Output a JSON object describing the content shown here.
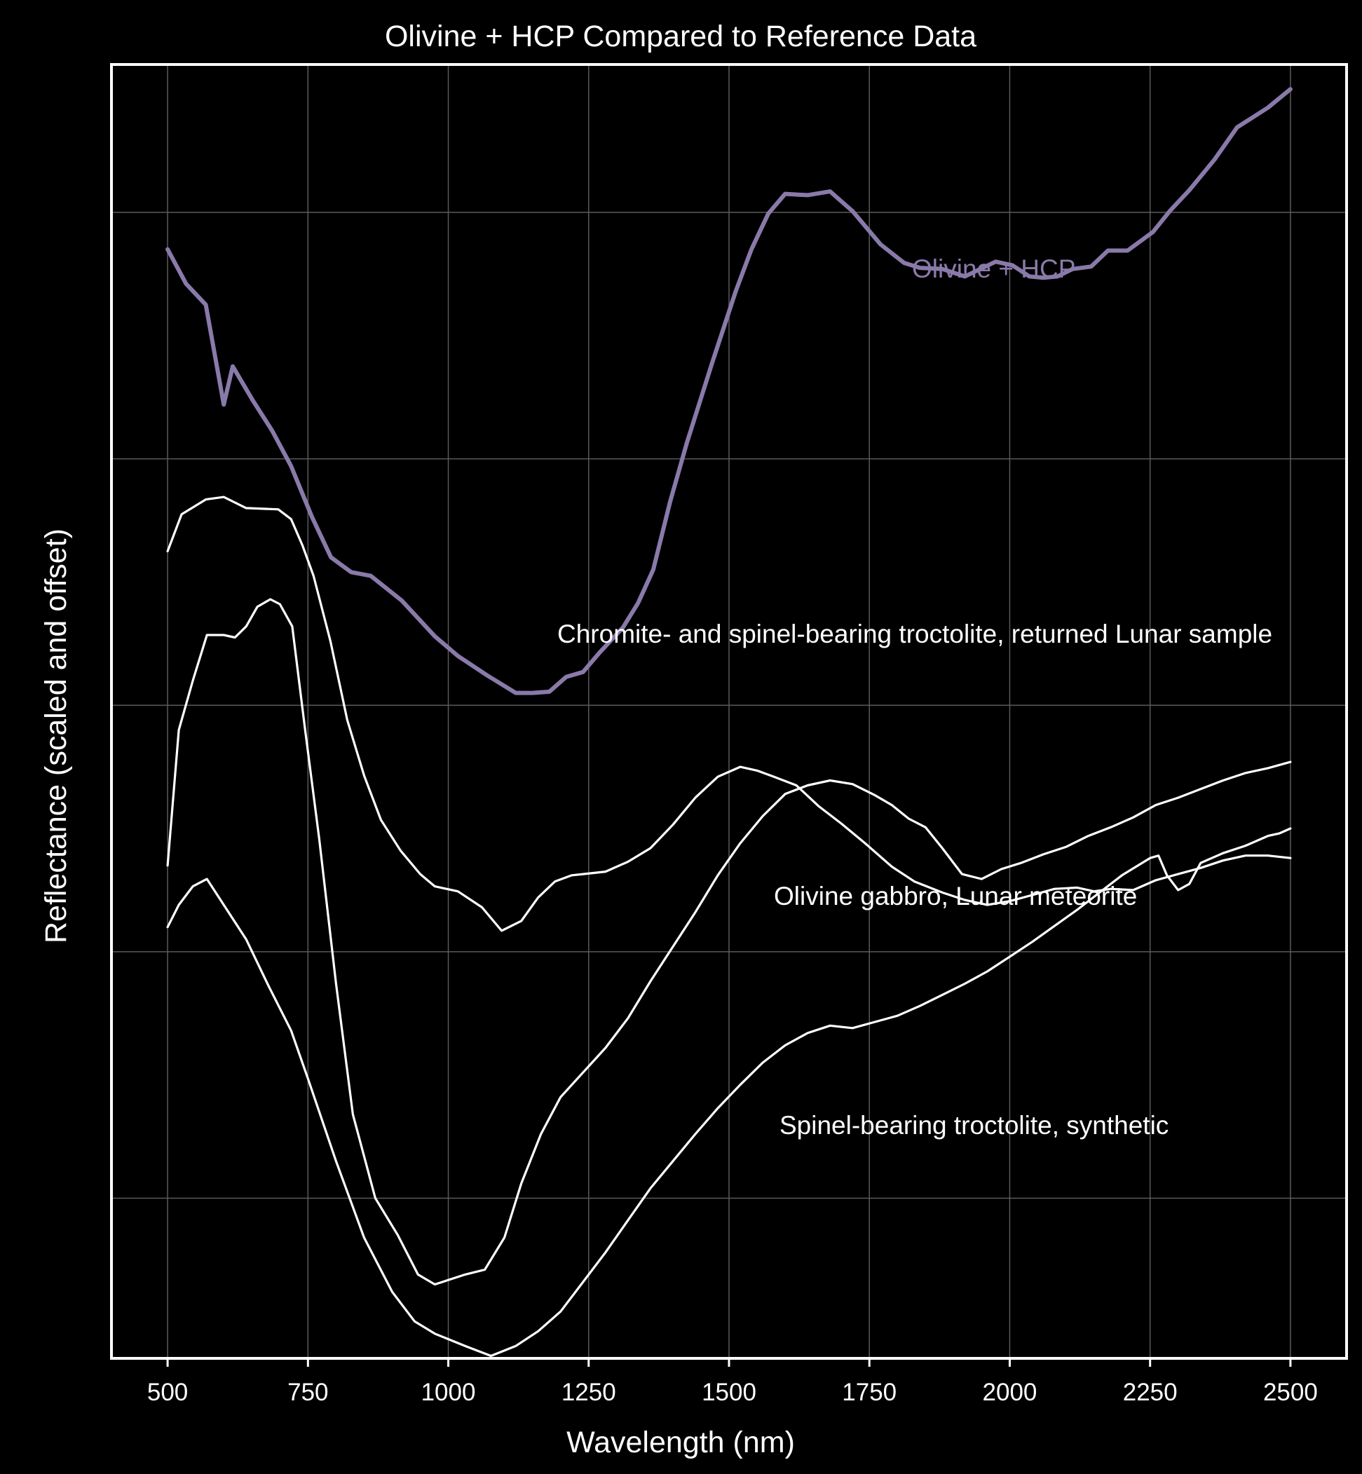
{
  "chart_data": {
    "type": "line",
    "title": "Olivine + HCP Compared to Reference Data",
    "xlabel": "Wavelength (nm)",
    "ylabel": "Reflectance (scaled and offset)",
    "xlim": [
      400,
      2600
    ],
    "ylim": [
      0,
      10.5
    ],
    "x_ticks": [
      500,
      750,
      1000,
      1250,
      1500,
      1750,
      2000,
      2250,
      2500
    ],
    "x_tick_labels": [
      "500",
      "750",
      "1000",
      "1250",
      "1500",
      "1750",
      "2000",
      "2250",
      "2500"
    ],
    "y_gridlines": [
      1.3,
      3.3,
      5.3,
      7.3,
      9.3
    ],
    "y_tick_labels": "none",
    "grid": true,
    "legend": "none",
    "series": [
      {
        "name": "Olivine + HCP",
        "color": "#8a7aaa",
        "stroke": "thick",
        "x": [
          500,
          533,
          568,
          600,
          616,
          651,
          686,
          720,
          757,
          791,
          827,
          862,
          917,
          976,
          1017,
          1070,
          1120,
          1150,
          1180,
          1210,
          1240,
          1270,
          1311,
          1338,
          1365,
          1395,
          1425,
          1470,
          1512,
          1540,
          1570,
          1600,
          1640,
          1680,
          1720,
          1770,
          1812,
          1840,
          1880,
          1920,
          1975,
          2005,
          2035,
          2060,
          2085,
          2112,
          2145,
          2175,
          2210,
          2255,
          2285,
          2320,
          2365,
          2405,
          2460,
          2500
        ],
        "y": [
          9.0,
          8.72,
          8.55,
          7.74,
          8.05,
          7.78,
          7.53,
          7.24,
          6.83,
          6.5,
          6.38,
          6.35,
          6.15,
          5.86,
          5.7,
          5.54,
          5.4,
          5.4,
          5.41,
          5.53,
          5.57,
          5.73,
          5.93,
          6.13,
          6.4,
          6.95,
          7.43,
          8.08,
          8.66,
          9.0,
          9.29,
          9.45,
          9.44,
          9.47,
          9.31,
          9.04,
          8.89,
          8.85,
          8.84,
          8.78,
          8.9,
          8.87,
          8.78,
          8.77,
          8.78,
          8.84,
          8.86,
          8.99,
          8.99,
          9.14,
          9.31,
          9.48,
          9.73,
          9.99,
          10.15,
          10.3
        ]
      },
      {
        "name": "Chromite- and spinel-bearing troctolite, returned Lunar sample",
        "color": "#ffffff",
        "stroke": "thin",
        "x": [
          500,
          525,
          568,
          600,
          640,
          697,
          720,
          740,
          760,
          790,
          820,
          850,
          880,
          915,
          950,
          976,
          1017,
          1060,
          1095,
          1130,
          1160,
          1190,
          1220,
          1240,
          1280,
          1320,
          1360,
          1400,
          1440,
          1480,
          1520,
          1550,
          1580,
          1620,
          1660,
          1700,
          1745,
          1790,
          1830,
          1880,
          1920,
          1960,
          2000,
          2040,
          2080,
          2120,
          2150,
          2180,
          2220,
          2260,
          2300,
          2340,
          2380,
          2420,
          2460,
          2500
        ],
        "y": [
          6.55,
          6.85,
          6.97,
          6.99,
          6.9,
          6.89,
          6.81,
          6.6,
          6.35,
          5.82,
          5.18,
          4.73,
          4.37,
          4.12,
          3.93,
          3.83,
          3.79,
          3.66,
          3.47,
          3.55,
          3.74,
          3.87,
          3.92,
          3.93,
          3.95,
          4.03,
          4.14,
          4.33,
          4.55,
          4.72,
          4.8,
          4.77,
          4.72,
          4.65,
          4.48,
          4.34,
          4.17,
          3.99,
          3.87,
          3.78,
          3.72,
          3.68,
          3.71,
          3.76,
          3.81,
          3.82,
          3.79,
          3.81,
          3.8,
          3.88,
          3.93,
          3.98,
          4.04,
          4.08,
          4.08,
          4.06
        ]
      },
      {
        "name": "Olivine gabbro, Lunar meteorite",
        "color": "#ffffff",
        "stroke": "thin",
        "x": [
          500,
          520,
          545,
          570,
          600,
          620,
          640,
          660,
          683,
          700,
          722,
          745,
          770,
          800,
          830,
          870,
          910,
          946,
          976,
          1030,
          1065,
          1100,
          1130,
          1165,
          1200,
          1240,
          1280,
          1320,
          1360,
          1400,
          1440,
          1480,
          1520,
          1560,
          1600,
          1640,
          1680,
          1720,
          1760,
          1790,
          1820,
          1850,
          1880,
          1915,
          1950,
          1985,
          2020,
          2060,
          2100,
          2140,
          2180,
          2220,
          2260,
          2300,
          2340,
          2380,
          2420,
          2460,
          2500
        ],
        "y": [
          4.0,
          5.1,
          5.5,
          5.87,
          5.87,
          5.85,
          5.94,
          6.1,
          6.16,
          6.12,
          5.94,
          5.1,
          4.22,
          3.04,
          1.98,
          1.3,
          1.0,
          0.68,
          0.6,
          0.68,
          0.72,
          0.98,
          1.42,
          1.82,
          2.12,
          2.32,
          2.52,
          2.76,
          3.06,
          3.34,
          3.62,
          3.92,
          4.18,
          4.4,
          4.58,
          4.65,
          4.69,
          4.66,
          4.57,
          4.49,
          4.38,
          4.31,
          4.14,
          3.93,
          3.89,
          3.97,
          4.02,
          4.09,
          4.15,
          4.24,
          4.31,
          4.39,
          4.49,
          4.55,
          4.62,
          4.69,
          4.75,
          4.79,
          4.84
        ]
      },
      {
        "name": "Spinel-bearing troctolite, synthetic",
        "color": "#ffffff",
        "stroke": "thin",
        "x": [
          500,
          520,
          545,
          570,
          600,
          640,
          680,
          720,
          750,
          800,
          850,
          900,
          940,
          976,
          1030,
          1076,
          1120,
          1160,
          1200,
          1240,
          1280,
          1320,
          1360,
          1400,
          1440,
          1480,
          1520,
          1560,
          1600,
          1640,
          1680,
          1720,
          1760,
          1800,
          1840,
          1880,
          1920,
          1960,
          2000,
          2040,
          2080,
          2120,
          2160,
          2200,
          2250,
          2265,
          2280,
          2300,
          2320,
          2340,
          2380,
          2420,
          2460,
          2480,
          2500
        ],
        "y": [
          3.5,
          3.68,
          3.83,
          3.89,
          3.68,
          3.4,
          3.02,
          2.66,
          2.27,
          1.6,
          0.98,
          0.54,
          0.3,
          0.2,
          0.1,
          0.02,
          0.1,
          0.22,
          0.38,
          0.62,
          0.86,
          1.12,
          1.38,
          1.6,
          1.82,
          2.03,
          2.22,
          2.4,
          2.54,
          2.64,
          2.7,
          2.68,
          2.73,
          2.78,
          2.86,
          2.95,
          3.04,
          3.14,
          3.26,
          3.38,
          3.51,
          3.64,
          3.78,
          3.92,
          4.06,
          4.08,
          3.92,
          3.8,
          3.85,
          4.02,
          4.1,
          4.16,
          4.24,
          4.26,
          4.3
        ]
      }
    ],
    "annotations": [
      {
        "text": "Olivine + HCP",
        "color": "#8a7aaa"
      },
      {
        "text": "Chromite- and spinel-bearing troctolite, returned Lunar sample",
        "color": "#ffffff"
      },
      {
        "text": "Olivine gabbro, Lunar meteorite",
        "color": "#ffffff"
      },
      {
        "text": "Spinel-bearing troctolite, synthetic",
        "color": "#ffffff"
      }
    ]
  }
}
